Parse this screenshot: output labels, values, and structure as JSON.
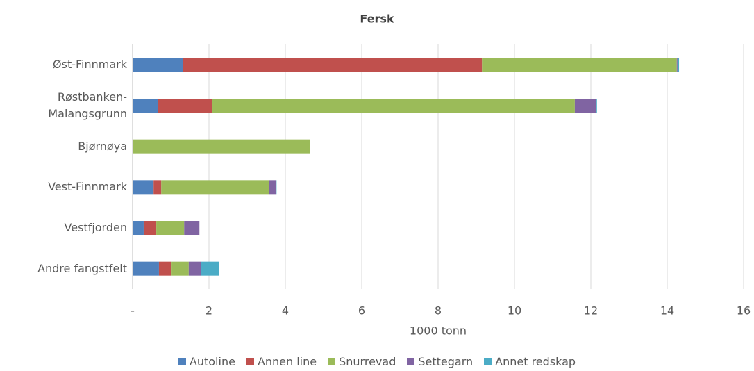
{
  "chart_data": {
    "type": "stacked_bar_horizontal",
    "title": "Fersk",
    "x_label": "1000 tonn",
    "categories": [
      "Øst-Finnmark",
      "Røstbanken-Malangsgrunn",
      "Bjørnøya",
      "Vest-Finnmark",
      "Vestfjorden",
      "Andre fangstfelt"
    ],
    "series": [
      {
        "name": "Autoline",
        "color": "#4f81bd",
        "values": [
          1.31,
          0.67,
          0,
          0.55,
          0.29,
          0.69
        ]
      },
      {
        "name": "Annen line",
        "color": "#c0504d",
        "values": [
          7.84,
          1.42,
          0,
          0.2,
          0.33,
          0.33
        ]
      },
      {
        "name": "Snurrevad",
        "color": "#9bbb59",
        "values": [
          5.1,
          9.49,
          4.65,
          2.83,
          0.73,
          0.45
        ]
      },
      {
        "name": "Settegarn",
        "color": "#8064a2",
        "values": [
          0.02,
          0.55,
          0,
          0.17,
          0.4,
          0.33
        ]
      },
      {
        "name": "Annet redskap",
        "color": "#4bacc6",
        "values": [
          0.04,
          0.03,
          0,
          0.02,
          0,
          0.47
        ]
      }
    ],
    "xlim": [
      0,
      16
    ],
    "xticks": [
      {
        "value": 0,
        "label": "-"
      },
      2,
      4,
      6,
      8,
      10,
      12,
      14,
      16
    ],
    "grid": true,
    "legend": "bottom"
  }
}
